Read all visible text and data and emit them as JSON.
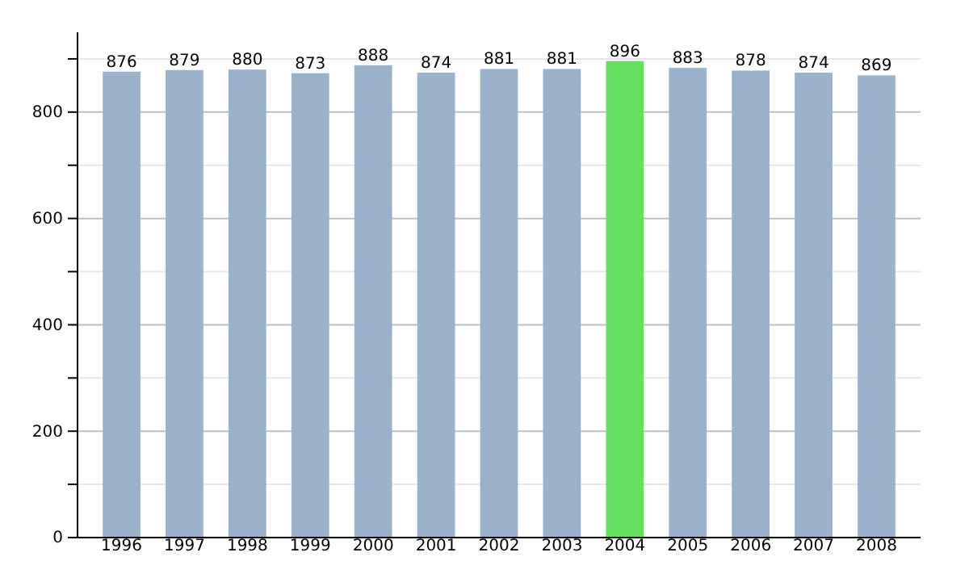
{
  "chart_data": {
    "type": "bar",
    "categories": [
      "1996",
      "1997",
      "1998",
      "1999",
      "2000",
      "2001",
      "2002",
      "2003",
      "2004",
      "2005",
      "2006",
      "2007",
      "2008"
    ],
    "values": [
      876,
      879,
      880,
      873,
      888,
      874,
      881,
      881,
      896,
      883,
      878,
      874,
      869
    ],
    "colors": [
      "#9ab2cc",
      "#9ab2cc",
      "#9ab2cc",
      "#9ab2cc",
      "#9ab2cc",
      "#9ab2cc",
      "#9ab2cc",
      "#9ab2cc",
      "#66e060",
      "#9ab2cc",
      "#9ab2cc",
      "#9ab2cc",
      "#9ab2cc"
    ],
    "ylim": [
      0,
      950
    ],
    "yticks": [
      0,
      {
        "value": 100,
        "label": null
      },
      200,
      {
        "value": 300,
        "label": null
      },
      400,
      {
        "value": 500,
        "label": null
      },
      600,
      {
        "value": 700,
        "label": null
      },
      800,
      {
        "value": 900,
        "label": null
      }
    ],
    "grid": "y",
    "data_labels": true
  }
}
